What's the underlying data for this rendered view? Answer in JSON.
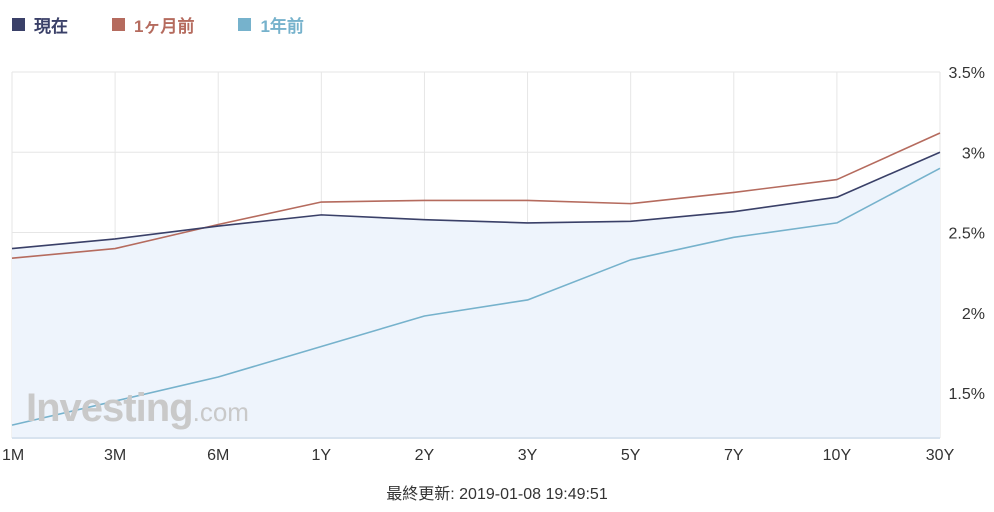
{
  "legend": [
    {
      "label": "現在",
      "color": "#3a4068"
    },
    {
      "label": "1ヶ月前",
      "color": "#b56b5e"
    },
    {
      "label": "1年前",
      "color": "#76b2cc"
    }
  ],
  "chart_data": {
    "type": "line",
    "categories": [
      "1M",
      "3M",
      "6M",
      "1Y",
      "2Y",
      "3Y",
      "5Y",
      "7Y",
      "10Y",
      "30Y"
    ],
    "series": [
      {
        "name": "現在",
        "color": "#3a4068",
        "values": [
          2.4,
          2.46,
          2.54,
          2.61,
          2.58,
          2.56,
          2.57,
          2.63,
          2.72,
          3.0
        ]
      },
      {
        "name": "1ヶ月前",
        "color": "#b56b5e",
        "values": [
          2.34,
          2.4,
          2.55,
          2.69,
          2.7,
          2.7,
          2.68,
          2.75,
          2.83,
          3.12
        ]
      },
      {
        "name": "1年前",
        "color": "#76b2cc",
        "values": [
          1.3,
          1.45,
          1.6,
          1.79,
          1.98,
          2.08,
          2.33,
          2.47,
          2.56,
          2.9
        ]
      }
    ],
    "ylim": [
      1.22,
      3.5
    ],
    "yticks": [
      1.5,
      2,
      2.5,
      3,
      3.5
    ],
    "ytick_labels": [
      "1.5%",
      "2%",
      "2.5%",
      "3%",
      "3.5%"
    ],
    "grid": true,
    "area_fill_series": "現在",
    "area_fill_color": "#eef4fc"
  },
  "watermark": {
    "main": "Investing",
    "sub": ".com"
  },
  "footer": {
    "last_updated": "最終更新: 2019-01-08 19:49:51"
  }
}
